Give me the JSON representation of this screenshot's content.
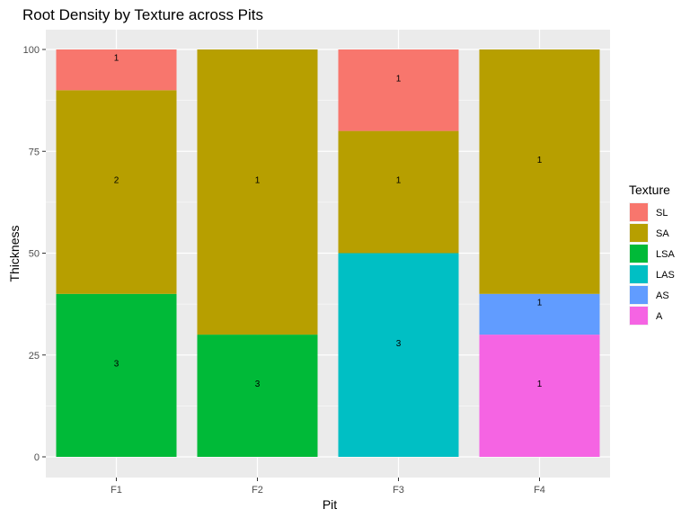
{
  "chart_data": {
    "type": "bar",
    "stacked": true,
    "title": "Root Density by Texture across Pits",
    "xlabel": "Pit",
    "ylabel": "Thickness",
    "ylim": [
      0,
      100
    ],
    "yticks": [
      0,
      25,
      50,
      75,
      100
    ],
    "categories": [
      "F1",
      "F2",
      "F3",
      "F4"
    ],
    "legend": {
      "title": "Texture",
      "placement": "right",
      "items": [
        {
          "name": "SL",
          "color": "#F8766D"
        },
        {
          "name": "SA",
          "color": "#B79F00"
        },
        {
          "name": "LSA",
          "color": "#00BA38"
        },
        {
          "name": "LAS",
          "color": "#00BFC4"
        },
        {
          "name": "AS",
          "color": "#619CFF"
        },
        {
          "name": "A",
          "color": "#F564E3"
        }
      ]
    },
    "segments": [
      {
        "category": "F1",
        "texture": "LSA",
        "value": 40,
        "label": "3"
      },
      {
        "category": "F1",
        "texture": "SA",
        "value": 50,
        "label": "2"
      },
      {
        "category": "F1",
        "texture": "SL",
        "value": 10,
        "label": "1"
      },
      {
        "category": "F2",
        "texture": "LSA",
        "value": 30,
        "label": "3"
      },
      {
        "category": "F2",
        "texture": "SA",
        "value": 70,
        "label": "1"
      },
      {
        "category": "F3",
        "texture": "LAS",
        "value": 50,
        "label": "3"
      },
      {
        "category": "F3",
        "texture": "SA",
        "value": 30,
        "label": "1"
      },
      {
        "category": "F3",
        "texture": "SL",
        "value": 20,
        "label": "1"
      },
      {
        "category": "F4",
        "texture": "A",
        "value": 30,
        "label": "1"
      },
      {
        "category": "F4",
        "texture": "AS",
        "value": 10,
        "label": "1"
      },
      {
        "category": "F4",
        "texture": "SA",
        "value": 60,
        "label": "1"
      }
    ],
    "grid": true,
    "panel_background": "#EBEBEB"
  }
}
